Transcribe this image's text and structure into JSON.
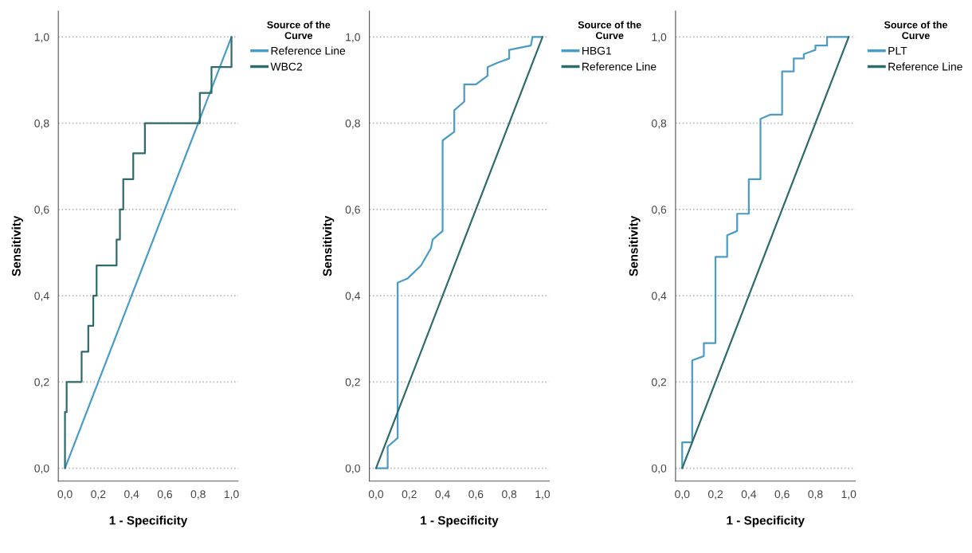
{
  "chart_data": [
    {
      "type": "line",
      "xlabel": "1 - Specificity",
      "ylabel": "Sensitivity",
      "legend_title": "Source of the\nCurve",
      "legend": "top right",
      "grid": "y",
      "line_style": "solid",
      "xlim": [
        -0.04,
        1.04
      ],
      "ylim": [
        -0.03,
        1.06
      ],
      "xticks": [
        {
          "value": 0,
          "label": "0,0"
        },
        {
          "value": 0.2,
          "label": "0,2"
        },
        {
          "value": 0.4,
          "label": "0,4"
        },
        {
          "value": 0.6,
          "label": "0,6"
        },
        {
          "value": 0.8,
          "label": "0,8"
        },
        {
          "value": 1,
          "label": "1,0"
        }
      ],
      "yticks": [
        {
          "value": 0,
          "label": "0,0"
        },
        {
          "value": 0.2,
          "label": "0,2"
        },
        {
          "value": 0.4,
          "label": "0,4"
        },
        {
          "value": 0.6,
          "label": "0,6"
        },
        {
          "value": 0.8,
          "label": "0,8"
        },
        {
          "value": 1,
          "label": "1,0"
        }
      ],
      "series": [
        {
          "name": "Reference Line",
          "color": "#4a9cc7",
          "x": [
            0,
            1
          ],
          "values": [
            0,
            1
          ]
        },
        {
          "name": "WBC2",
          "color": "#2e6b6b",
          "x": [
            0,
            0,
            0.01,
            0.01,
            0.1,
            0.1,
            0.14,
            0.14,
            0.17,
            0.17,
            0.19,
            0.19,
            0.31,
            0.31,
            0.33,
            0.33,
            0.35,
            0.35,
            0.41,
            0.41,
            0.48,
            0.48,
            0.81,
            0.81,
            0.88,
            0.88,
            1,
            1
          ],
          "values": [
            0,
            0.13,
            0.13,
            0.2,
            0.2,
            0.27,
            0.27,
            0.33,
            0.33,
            0.4,
            0.4,
            0.47,
            0.47,
            0.53,
            0.53,
            0.6,
            0.6,
            0.67,
            0.67,
            0.73,
            0.73,
            0.8,
            0.8,
            0.87,
            0.87,
            0.93,
            0.93,
            1
          ]
        }
      ]
    },
    {
      "type": "line",
      "xlabel": "1 - Specificity",
      "ylabel": "Sensitivity",
      "legend_title": "Source of the\nCurve",
      "legend": "top right",
      "grid": "y",
      "line_style": "solid",
      "xlim": [
        -0.04,
        1.04
      ],
      "ylim": [
        -0.03,
        1.06
      ],
      "xticks": [
        {
          "value": 0,
          "label": "0,0"
        },
        {
          "value": 0.2,
          "label": "0,2"
        },
        {
          "value": 0.4,
          "label": "0,4"
        },
        {
          "value": 0.6,
          "label": "0,6"
        },
        {
          "value": 0.8,
          "label": "0,8"
        },
        {
          "value": 1,
          "label": "1,0"
        }
      ],
      "yticks": [
        {
          "value": 0,
          "label": "0,0"
        },
        {
          "value": 0.2,
          "label": "0,2"
        },
        {
          "value": 0.4,
          "label": "0,4"
        },
        {
          "value": 0.6,
          "label": "0,6"
        },
        {
          "value": 0.8,
          "label": "0,8"
        },
        {
          "value": 1,
          "label": "1,0"
        }
      ],
      "series": [
        {
          "name": "HBG1",
          "color": "#4a9cc7",
          "x": [
            0,
            0.07,
            0.07,
            0.13,
            0.13,
            0.19,
            0.27,
            0.33,
            0.34,
            0.4,
            0.4,
            0.47,
            0.47,
            0.53,
            0.53,
            0.6,
            0.67,
            0.67,
            0.73,
            0.8,
            0.8,
            0.93,
            0.94,
            1
          ],
          "values": [
            0,
            0,
            0.05,
            0.07,
            0.43,
            0.44,
            0.47,
            0.51,
            0.53,
            0.55,
            0.76,
            0.78,
            0.83,
            0.85,
            0.89,
            0.89,
            0.91,
            0.93,
            0.94,
            0.95,
            0.97,
            0.98,
            1,
            1
          ]
        },
        {
          "name": "Reference Line",
          "color": "#2e6b6b",
          "x": [
            0,
            1
          ],
          "values": [
            0,
            1
          ]
        }
      ]
    },
    {
      "type": "line",
      "xlabel": "1 - Specificity",
      "ylabel": "Sensitivity",
      "legend_title": "Source of the\nCurve",
      "legend": "top right",
      "grid": "y",
      "line_style": "solid",
      "xlim": [
        -0.04,
        1.04
      ],
      "ylim": [
        -0.03,
        1.06
      ],
      "xticks": [
        {
          "value": 0,
          "label": "0,0"
        },
        {
          "value": 0.2,
          "label": "0,2"
        },
        {
          "value": 0.4,
          "label": "0,4"
        },
        {
          "value": 0.6,
          "label": "0,6"
        },
        {
          "value": 0.8,
          "label": "0,8"
        },
        {
          "value": 1,
          "label": "1,0"
        }
      ],
      "yticks": [
        {
          "value": 0,
          "label": "0,0"
        },
        {
          "value": 0.2,
          "label": "0,2"
        },
        {
          "value": 0.4,
          "label": "0,4"
        },
        {
          "value": 0.6,
          "label": "0,6"
        },
        {
          "value": 0.8,
          "label": "0,8"
        },
        {
          "value": 1,
          "label": "1,0"
        }
      ],
      "series": [
        {
          "name": "PLT",
          "color": "#4a9cc7",
          "x": [
            0,
            0,
            0.06,
            0.06,
            0.13,
            0.13,
            0.2,
            0.2,
            0.27,
            0.27,
            0.33,
            0.33,
            0.4,
            0.4,
            0.47,
            0.47,
            0.53,
            0.6,
            0.6,
            0.67,
            0.67,
            0.73,
            0.73,
            0.8,
            0.8,
            0.87,
            0.87,
            1
          ],
          "values": [
            0,
            0.06,
            0.06,
            0.25,
            0.26,
            0.29,
            0.29,
            0.49,
            0.49,
            0.54,
            0.55,
            0.59,
            0.59,
            0.67,
            0.67,
            0.81,
            0.82,
            0.82,
            0.92,
            0.92,
            0.95,
            0.95,
            0.96,
            0.97,
            0.98,
            0.98,
            1,
            1
          ]
        },
        {
          "name": "Reference Line",
          "color": "#2e6b6b",
          "x": [
            0,
            1
          ],
          "values": [
            0,
            1
          ]
        }
      ]
    }
  ]
}
